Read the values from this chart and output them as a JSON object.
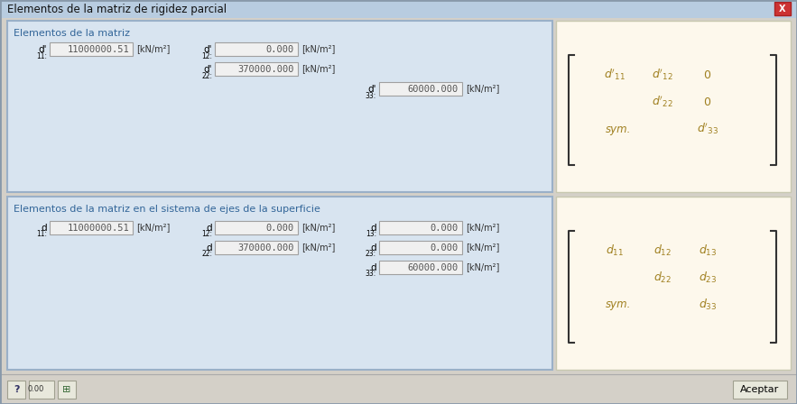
{
  "title": "Elementos de la matriz de rigidez parcial",
  "bg_color": "#d4d0c8",
  "title_bar_grad_top": "#c8d8e8",
  "title_bar_grad_bot": "#a8c0d8",
  "close_btn_color": "#cc3333",
  "panel_left_bg": "#d8e4f0",
  "panel_left_border": "#9ab0c8",
  "panel_right_bg": "#fdf8ec",
  "panel_right_border": "#c8c8b0",
  "input_bg": "#f0f0f0",
  "input_border": "#a0a0a0",
  "section1_title": "Elementos de la matriz",
  "section2_title": "Elementos de la matriz en el sistema de ejes de la superficie",
  "section_title_color": "#336699",
  "matrix_color": "#a08020",
  "button_label": "Aceptar",
  "bottom_btn_bg": "#e8e8dc",
  "bottom_btn_border": "#a0a090"
}
